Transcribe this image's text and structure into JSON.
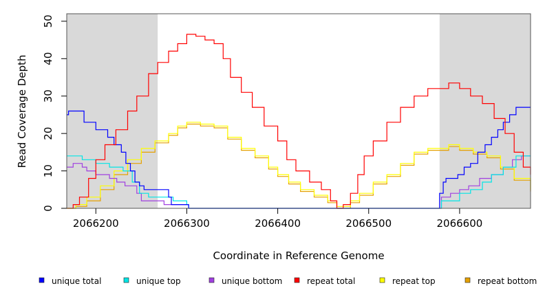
{
  "chart_data": {
    "type": "line",
    "title": "",
    "xlabel": "Coordinate in Reference Genome",
    "ylabel": "Read Coverage Depth",
    "xlim": [
      2066168,
      2066678
    ],
    "ylim": [
      0,
      52
    ],
    "xticks": [
      2066200,
      2066300,
      2066400,
      2066500,
      2066600
    ],
    "xtick_labels": [
      "2066200",
      "2066300",
      "2066400",
      "2066500",
      "2066600"
    ],
    "yticks": [
      0,
      10,
      20,
      30,
      40,
      50
    ],
    "ytick_labels": [
      "0",
      "10",
      "20",
      "30",
      "40",
      "50"
    ],
    "shaded_regions": [
      [
        2066168,
        2066268
      ],
      [
        2066578,
        2066678
      ]
    ],
    "series": [
      {
        "name": "unique total",
        "color": "#0000ff",
        "points": [
          [
            2066168,
            25
          ],
          [
            2066170,
            26
          ],
          [
            2066180,
            26
          ],
          [
            2066187,
            23
          ],
          [
            2066200,
            21
          ],
          [
            2066213,
            19
          ],
          [
            2066220,
            17
          ],
          [
            2066228,
            15
          ],
          [
            2066233,
            12
          ],
          [
            2066238,
            10
          ],
          [
            2066243,
            7
          ],
          [
            2066248,
            6
          ],
          [
            2066253,
            5
          ],
          [
            2066270,
            5
          ],
          [
            2066280,
            3
          ],
          [
            2066283,
            1
          ],
          [
            2066300,
            1
          ],
          [
            2066302,
            0
          ],
          [
            2066560,
            0
          ],
          [
            2066576,
            0
          ],
          [
            2066578,
            4
          ],
          [
            2066582,
            7
          ],
          [
            2066585,
            8
          ],
          [
            2066598,
            9
          ],
          [
            2066605,
            11
          ],
          [
            2066612,
            12
          ],
          [
            2066620,
            15
          ],
          [
            2066628,
            17
          ],
          [
            2066635,
            19
          ],
          [
            2066642,
            21
          ],
          [
            2066648,
            23
          ],
          [
            2066655,
            25
          ],
          [
            2066662,
            27
          ],
          [
            2066678,
            27
          ]
        ]
      },
      {
        "name": "unique top",
        "color": "#00e5e5",
        "points": [
          [
            2066168,
            14
          ],
          [
            2066185,
            13
          ],
          [
            2066200,
            12
          ],
          [
            2066215,
            11
          ],
          [
            2066230,
            10
          ],
          [
            2066240,
            7
          ],
          [
            2066248,
            4
          ],
          [
            2066258,
            3
          ],
          [
            2066285,
            2
          ],
          [
            2066300,
            1
          ],
          [
            2066302,
            0
          ],
          [
            2066576,
            0
          ],
          [
            2066580,
            2
          ],
          [
            2066600,
            4
          ],
          [
            2066612,
            5
          ],
          [
            2066625,
            7
          ],
          [
            2066635,
            9
          ],
          [
            2066648,
            11
          ],
          [
            2066662,
            14
          ],
          [
            2066678,
            14
          ]
        ]
      },
      {
        "name": "unique bottom",
        "color": "#a040e0",
        "points": [
          [
            2066168,
            11
          ],
          [
            2066175,
            12
          ],
          [
            2066185,
            11
          ],
          [
            2066190,
            10
          ],
          [
            2066200,
            9
          ],
          [
            2066215,
            8
          ],
          [
            2066223,
            7
          ],
          [
            2066232,
            6
          ],
          [
            2066245,
            4
          ],
          [
            2066250,
            2
          ],
          [
            2066260,
            2
          ],
          [
            2066275,
            1
          ],
          [
            2066300,
            1
          ],
          [
            2066302,
            0
          ],
          [
            2066576,
            0
          ],
          [
            2066580,
            3
          ],
          [
            2066590,
            4
          ],
          [
            2066600,
            5
          ],
          [
            2066610,
            6
          ],
          [
            2066622,
            8
          ],
          [
            2066635,
            9
          ],
          [
            2066648,
            11
          ],
          [
            2066658,
            13
          ],
          [
            2066668,
            14
          ],
          [
            2066678,
            14
          ]
        ]
      },
      {
        "name": "repeat total",
        "color": "#ff0000",
        "points": [
          [
            2066168,
            0
          ],
          [
            2066175,
            1
          ],
          [
            2066182,
            3
          ],
          [
            2066192,
            8
          ],
          [
            2066200,
            13
          ],
          [
            2066210,
            17
          ],
          [
            2066222,
            21
          ],
          [
            2066235,
            26
          ],
          [
            2066245,
            30
          ],
          [
            2066258,
            36
          ],
          [
            2066268,
            39
          ],
          [
            2066280,
            42
          ],
          [
            2066290,
            44
          ],
          [
            2066300,
            46.5
          ],
          [
            2066310,
            46
          ],
          [
            2066320,
            45
          ],
          [
            2066330,
            44
          ],
          [
            2066340,
            40
          ],
          [
            2066348,
            35
          ],
          [
            2066360,
            31
          ],
          [
            2066372,
            27
          ],
          [
            2066385,
            22
          ],
          [
            2066400,
            18
          ],
          [
            2066410,
            13
          ],
          [
            2066420,
            10
          ],
          [
            2066435,
            7
          ],
          [
            2066448,
            5
          ],
          [
            2066458,
            2
          ],
          [
            2066465,
            0
          ],
          [
            2066472,
            1
          ],
          [
            2066480,
            4
          ],
          [
            2066488,
            9
          ],
          [
            2066495,
            14
          ],
          [
            2066505,
            18
          ],
          [
            2066520,
            23
          ],
          [
            2066535,
            27
          ],
          [
            2066550,
            30
          ],
          [
            2066565,
            32
          ],
          [
            2066578,
            32
          ],
          [
            2066588,
            33.5
          ],
          [
            2066600,
            32
          ],
          [
            2066612,
            30
          ],
          [
            2066625,
            28
          ],
          [
            2066638,
            24
          ],
          [
            2066650,
            20
          ],
          [
            2066660,
            15
          ],
          [
            2066670,
            11
          ],
          [
            2066678,
            9
          ]
        ]
      },
      {
        "name": "repeat top",
        "color": "#ffff00",
        "points": [
          [
            2066168,
            0
          ],
          [
            2066178,
            1
          ],
          [
            2066190,
            3
          ],
          [
            2066205,
            6
          ],
          [
            2066220,
            10
          ],
          [
            2066235,
            13
          ],
          [
            2066250,
            16
          ],
          [
            2066265,
            18
          ],
          [
            2066280,
            20
          ],
          [
            2066290,
            22
          ],
          [
            2066300,
            23
          ],
          [
            2066315,
            22.5
          ],
          [
            2066330,
            22
          ],
          [
            2066345,
            19
          ],
          [
            2066360,
            16
          ],
          [
            2066375,
            14
          ],
          [
            2066390,
            11
          ],
          [
            2066400,
            9
          ],
          [
            2066412,
            7
          ],
          [
            2066425,
            5
          ],
          [
            2066440,
            3.5
          ],
          [
            2066455,
            2
          ],
          [
            2066465,
            0.5
          ],
          [
            2066472,
            0.5
          ],
          [
            2066480,
            2
          ],
          [
            2066490,
            4
          ],
          [
            2066505,
            7
          ],
          [
            2066520,
            9
          ],
          [
            2066535,
            12
          ],
          [
            2066550,
            15
          ],
          [
            2066565,
            16
          ],
          [
            2066578,
            16
          ],
          [
            2066588,
            17
          ],
          [
            2066600,
            16
          ],
          [
            2066615,
            15
          ],
          [
            2066630,
            14
          ],
          [
            2066645,
            11
          ],
          [
            2066660,
            8
          ],
          [
            2066678,
            5
          ]
        ]
      },
      {
        "name": "repeat bottom",
        "color": "#e5a000",
        "points": [
          [
            2066168,
            0
          ],
          [
            2066178,
            0.5
          ],
          [
            2066190,
            2
          ],
          [
            2066205,
            5
          ],
          [
            2066220,
            9
          ],
          [
            2066235,
            12
          ],
          [
            2066250,
            15
          ],
          [
            2066265,
            17.5
          ],
          [
            2066280,
            19.5
          ],
          [
            2066290,
            21.5
          ],
          [
            2066300,
            22.5
          ],
          [
            2066315,
            22
          ],
          [
            2066330,
            21.5
          ],
          [
            2066345,
            18.5
          ],
          [
            2066360,
            15.5
          ],
          [
            2066375,
            13.5
          ],
          [
            2066390,
            10.5
          ],
          [
            2066400,
            8.5
          ],
          [
            2066412,
            6.5
          ],
          [
            2066425,
            4.5
          ],
          [
            2066440,
            3
          ],
          [
            2066455,
            1.5
          ],
          [
            2066465,
            0
          ],
          [
            2066472,
            0
          ],
          [
            2066480,
            1.5
          ],
          [
            2066490,
            3.5
          ],
          [
            2066505,
            6.5
          ],
          [
            2066520,
            8.5
          ],
          [
            2066535,
            11.5
          ],
          [
            2066550,
            14.5
          ],
          [
            2066565,
            15.5
          ],
          [
            2066578,
            15.5
          ],
          [
            2066588,
            16.5
          ],
          [
            2066600,
            15.5
          ],
          [
            2066615,
            14.5
          ],
          [
            2066630,
            13.5
          ],
          [
            2066645,
            10.5
          ],
          [
            2066660,
            7.5
          ],
          [
            2066678,
            4.5
          ]
        ]
      }
    ],
    "legend": {
      "placement": "bottom",
      "entries": [
        {
          "label": "unique total",
          "color": "#0000ff"
        },
        {
          "label": "unique top",
          "color": "#00e5e5"
        },
        {
          "label": "unique bottom",
          "color": "#a040e0"
        },
        {
          "label": "repeat total",
          "color": "#ff0000"
        },
        {
          "label": "repeat top",
          "color": "#ffff00"
        },
        {
          "label": "repeat bottom",
          "color": "#e5a000"
        }
      ]
    }
  }
}
